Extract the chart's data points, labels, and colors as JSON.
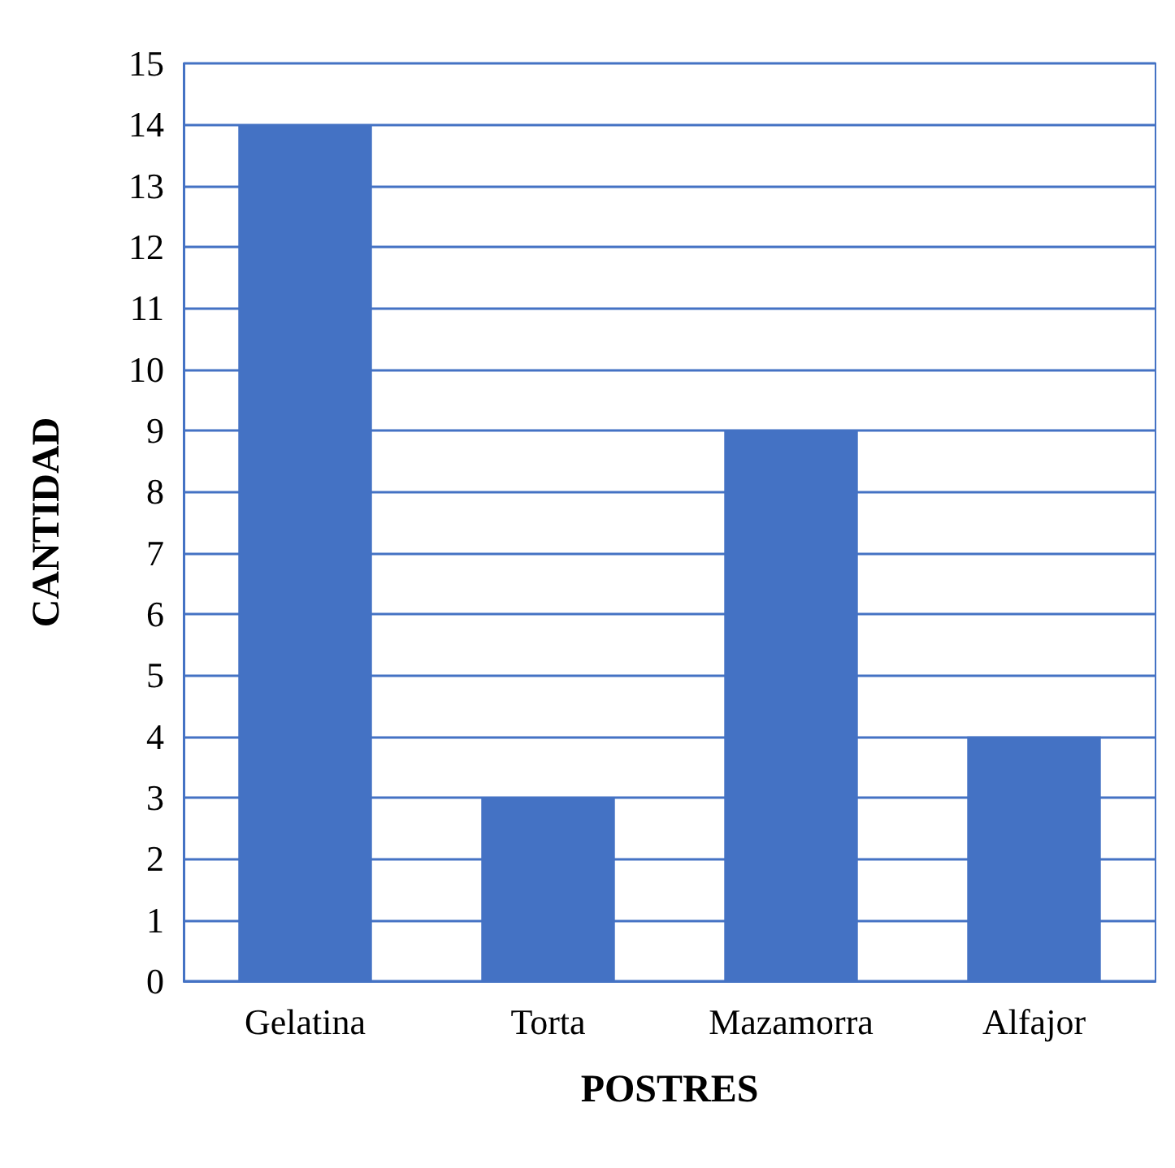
{
  "chart_data": {
    "type": "bar",
    "xlabel": "POSTRES",
    "ylabel": "CANTIDAD",
    "categories": [
      "Gelatina",
      "Torta",
      "Mazamorra",
      "Alfajor"
    ],
    "values": [
      14,
      3,
      9,
      4
    ],
    "color": "#4472c4",
    "ylim": [
      0,
      15
    ],
    "yticks": [
      0,
      1,
      2,
      3,
      4,
      5,
      6,
      7,
      8,
      9,
      10,
      11,
      12,
      13,
      14,
      15
    ],
    "grid": "y"
  }
}
